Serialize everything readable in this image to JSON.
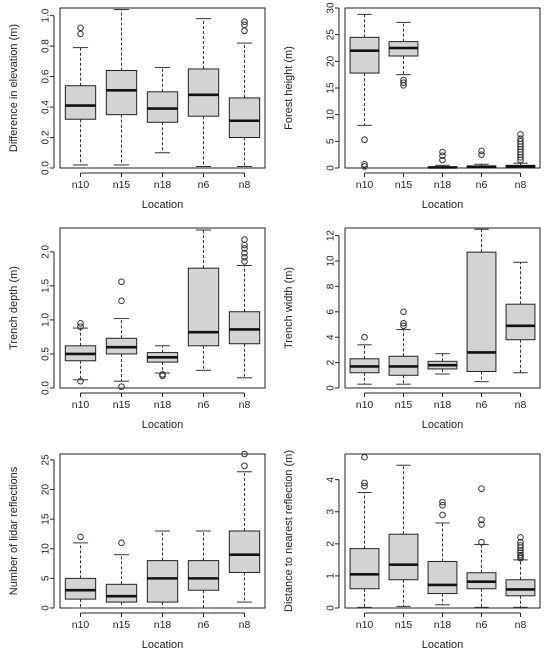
{
  "box_fill": "#d3d3d3",
  "chart_data": [
    {
      "type": "box",
      "xlabel": "Location",
      "ylabel": "Difference in elevation (m)",
      "categories": [
        "n10",
        "n15",
        "n18",
        "n6",
        "n8"
      ],
      "ylim": [
        0,
        1.05
      ],
      "yticks": [
        0.0,
        0.2,
        0.4,
        0.6,
        0.8,
        1.0
      ],
      "ytick_labels": [
        "0.0",
        "0.2",
        "0.4",
        "0.6",
        "0.8",
        "1.0"
      ],
      "boxes": [
        {
          "min": 0.02,
          "q1": 0.32,
          "median": 0.41,
          "q3": 0.54,
          "max": 0.79,
          "outliers": [
            0.88,
            0.92
          ]
        },
        {
          "min": 0.02,
          "q1": 0.35,
          "median": 0.51,
          "q3": 0.64,
          "max": 1.04,
          "outliers": []
        },
        {
          "min": 0.1,
          "q1": 0.3,
          "median": 0.39,
          "q3": 0.5,
          "max": 0.66,
          "outliers": []
        },
        {
          "min": 0.01,
          "q1": 0.34,
          "median": 0.48,
          "q3": 0.65,
          "max": 0.98,
          "outliers": []
        },
        {
          "min": 0.01,
          "q1": 0.2,
          "median": 0.31,
          "q3": 0.46,
          "max": 0.82,
          "outliers": [
            0.9,
            0.94,
            0.96
          ]
        }
      ]
    },
    {
      "type": "box",
      "xlabel": "Location",
      "ylabel": "Forest height (m)",
      "categories": [
        "n10",
        "n15",
        "n18",
        "n6",
        "n8"
      ],
      "ylim": [
        0,
        30
      ],
      "yticks": [
        0,
        5,
        10,
        15,
        20,
        25,
        30
      ],
      "ytick_labels": [
        "0",
        "5",
        "10",
        "15",
        "20",
        "25",
        "30"
      ],
      "boxes": [
        {
          "min": 8,
          "q1": 17.8,
          "median": 22,
          "q3": 24.5,
          "max": 28.8,
          "outliers": [
            5.3,
            0.7,
            0.3
          ]
        },
        {
          "min": 17.5,
          "q1": 21,
          "median": 22.5,
          "q3": 23.7,
          "max": 27.3,
          "outliers": [
            16.5,
            16,
            15.5
          ]
        },
        {
          "min": 0,
          "q1": 0,
          "median": 0.1,
          "q3": 0.2,
          "max": 0.5,
          "outliers": [
            2.3,
            3,
            1.5
          ]
        },
        {
          "min": 0,
          "q1": 0.1,
          "median": 0.2,
          "q3": 0.4,
          "max": 0.7,
          "outliers": [
            2.5,
            3.2
          ]
        },
        {
          "min": 0,
          "q1": 0.1,
          "median": 0.3,
          "q3": 0.5,
          "max": 0.9,
          "outliers": [
            1.5,
            2,
            2.5,
            3,
            3.5,
            4,
            4.5,
            5,
            5.5,
            6.3
          ]
        }
      ]
    },
    {
      "type": "box",
      "xlabel": "Location",
      "ylabel": "Trench depth (m)",
      "categories": [
        "n10",
        "n15",
        "n18",
        "n6",
        "n8"
      ],
      "ylim": [
        0,
        2.35
      ],
      "yticks": [
        0.0,
        0.5,
        1.0,
        1.5,
        2.0
      ],
      "ytick_labels": [
        "0.0",
        "0.5",
        "1.0",
        "1.5",
        "2.0"
      ],
      "boxes": [
        {
          "min": 0.12,
          "q1": 0.4,
          "median": 0.5,
          "q3": 0.62,
          "max": 0.88,
          "outliers": [
            0.95,
            0.9,
            0.1
          ]
        },
        {
          "min": 0.1,
          "q1": 0.5,
          "median": 0.6,
          "q3": 0.73,
          "max": 1.02,
          "outliers": [
            1.28,
            1.56,
            0.02
          ]
        },
        {
          "min": 0.22,
          "q1": 0.38,
          "median": 0.45,
          "q3": 0.52,
          "max": 0.62,
          "outliers": [
            0.18,
            0.2
          ]
        },
        {
          "min": 0.26,
          "q1": 0.62,
          "median": 0.82,
          "q3": 1.76,
          "max": 2.32,
          "outliers": []
        },
        {
          "min": 0.15,
          "q1": 0.65,
          "median": 0.86,
          "q3": 1.12,
          "max": 1.8,
          "outliers": [
            1.86,
            1.92,
            1.98,
            2.05,
            2.1,
            2.18
          ]
        }
      ]
    },
    {
      "type": "box",
      "xlabel": "Location",
      "ylabel": "Trench width (m)",
      "categories": [
        "n10",
        "n15",
        "n18",
        "n6",
        "n8"
      ],
      "ylim": [
        0,
        12.6
      ],
      "yticks": [
        0,
        2,
        4,
        6,
        8,
        10,
        12
      ],
      "ytick_labels": [
        "0",
        "2",
        "4",
        "6",
        "8",
        "10",
        "12"
      ],
      "boxes": [
        {
          "min": 0.3,
          "q1": 1.2,
          "median": 1.7,
          "q3": 2.3,
          "max": 3.4,
          "outliers": [
            4
          ]
        },
        {
          "min": 0.3,
          "q1": 1,
          "median": 1.7,
          "q3": 2.5,
          "max": 4.6,
          "outliers": [
            4.9,
            5.1,
            6
          ]
        },
        {
          "min": 1.1,
          "q1": 1.5,
          "median": 1.8,
          "q3": 2.1,
          "max": 2.7,
          "outliers": []
        },
        {
          "min": 0.5,
          "q1": 1.3,
          "median": 2.8,
          "q3": 10.7,
          "max": 12.5,
          "outliers": []
        },
        {
          "min": 1.2,
          "q1": 3.8,
          "median": 4.9,
          "q3": 6.6,
          "max": 9.9,
          "outliers": []
        }
      ]
    },
    {
      "type": "box",
      "xlabel": "Location",
      "ylabel": "Number of lidar reflections",
      "categories": [
        "n10",
        "n15",
        "n18",
        "n6",
        "n8"
      ],
      "ylim": [
        0,
        26
      ],
      "yticks": [
        0,
        5,
        10,
        15,
        20,
        25
      ],
      "ytick_labels": [
        "0",
        "5",
        "10",
        "15",
        "20",
        "25"
      ],
      "boxes": [
        {
          "min": 0,
          "q1": 1.5,
          "median": 3,
          "q3": 5,
          "max": 11,
          "outliers": [
            12
          ]
        },
        {
          "min": 0,
          "q1": 1,
          "median": 2,
          "q3": 4,
          "max": 9,
          "outliers": [
            11
          ]
        },
        {
          "min": 0,
          "q1": 1,
          "median": 5,
          "q3": 8,
          "max": 13,
          "outliers": []
        },
        {
          "min": 0,
          "q1": 3,
          "median": 5,
          "q3": 8,
          "max": 13,
          "outliers": []
        },
        {
          "min": 1,
          "q1": 6,
          "median": 9,
          "q3": 13,
          "max": 23,
          "outliers": [
            24,
            26
          ]
        }
      ]
    },
    {
      "type": "box",
      "xlabel": "Location",
      "ylabel": "Distance to nearest reflection (m)",
      "categories": [
        "n10",
        "n15",
        "n18",
        "n6",
        "n8"
      ],
      "ylim": [
        0,
        4.8
      ],
      "yticks": [
        0,
        1,
        2,
        3,
        4
      ],
      "ytick_labels": [
        "0",
        "1",
        "2",
        "3",
        "4"
      ],
      "boxes": [
        {
          "min": 0.02,
          "q1": 0.6,
          "median": 1.05,
          "q3": 1.85,
          "max": 3.6,
          "outliers": [
            3.8,
            3.9,
            4.7
          ]
        },
        {
          "min": 0.05,
          "q1": 0.88,
          "median": 1.35,
          "q3": 2.3,
          "max": 4.45,
          "outliers": []
        },
        {
          "min": 0.1,
          "q1": 0.45,
          "median": 0.72,
          "q3": 1.45,
          "max": 2.65,
          "outliers": [
            2.9,
            3.2,
            3.3
          ]
        },
        {
          "min": 0.02,
          "q1": 0.6,
          "median": 0.82,
          "q3": 1.1,
          "max": 1.98,
          "outliers": [
            2.05,
            2.6,
            2.75,
            3.72
          ]
        },
        {
          "min": 0.02,
          "q1": 0.38,
          "median": 0.58,
          "q3": 0.88,
          "max": 1.5,
          "outliers": [
            1.55,
            1.6,
            1.65,
            1.72,
            1.8,
            1.88,
            1.95,
            2.05,
            2.2
          ]
        }
      ]
    }
  ]
}
